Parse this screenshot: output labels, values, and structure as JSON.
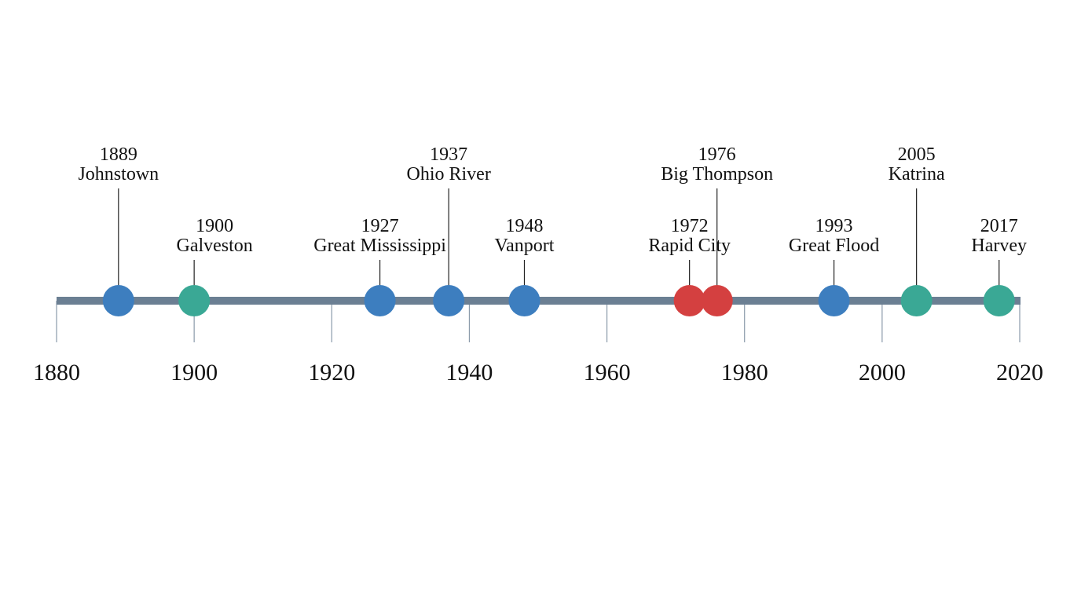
{
  "timeline": {
    "axis": {
      "start": 1880,
      "end": 2020,
      "tick_step": 20,
      "ticks": [
        "1880",
        "1900",
        "1920",
        "1940",
        "1960",
        "1980",
        "2000",
        "2020"
      ],
      "bar_color": "#6b7f93",
      "tick_color": "#8a9aaa"
    },
    "category_colors": {
      "blue": "#3d7ebf",
      "green": "#3aa895",
      "red": "#d44040"
    },
    "events": [
      {
        "year": 1889,
        "label": "Johnstown",
        "color": "blue",
        "tier": "high"
      },
      {
        "year": 1900,
        "label": "Galveston",
        "color": "green",
        "tier": "low"
      },
      {
        "year": 1927,
        "label": "Great Mississippi",
        "color": "blue",
        "tier": "low"
      },
      {
        "year": 1937,
        "label": "Ohio River",
        "color": "blue",
        "tier": "high"
      },
      {
        "year": 1948,
        "label": "Vanport",
        "color": "blue",
        "tier": "low"
      },
      {
        "year": 1972,
        "label": "Rapid City",
        "color": "red",
        "tier": "low"
      },
      {
        "year": 1976,
        "label": "Big Thompson",
        "color": "red",
        "tier": "high"
      },
      {
        "year": 1993,
        "label": "Great Flood",
        "color": "blue",
        "tier": "low"
      },
      {
        "year": 2005,
        "label": "Katrina",
        "color": "green",
        "tier": "high"
      },
      {
        "year": 2017,
        "label": "Harvey",
        "color": "green",
        "tier": "low"
      }
    ]
  }
}
